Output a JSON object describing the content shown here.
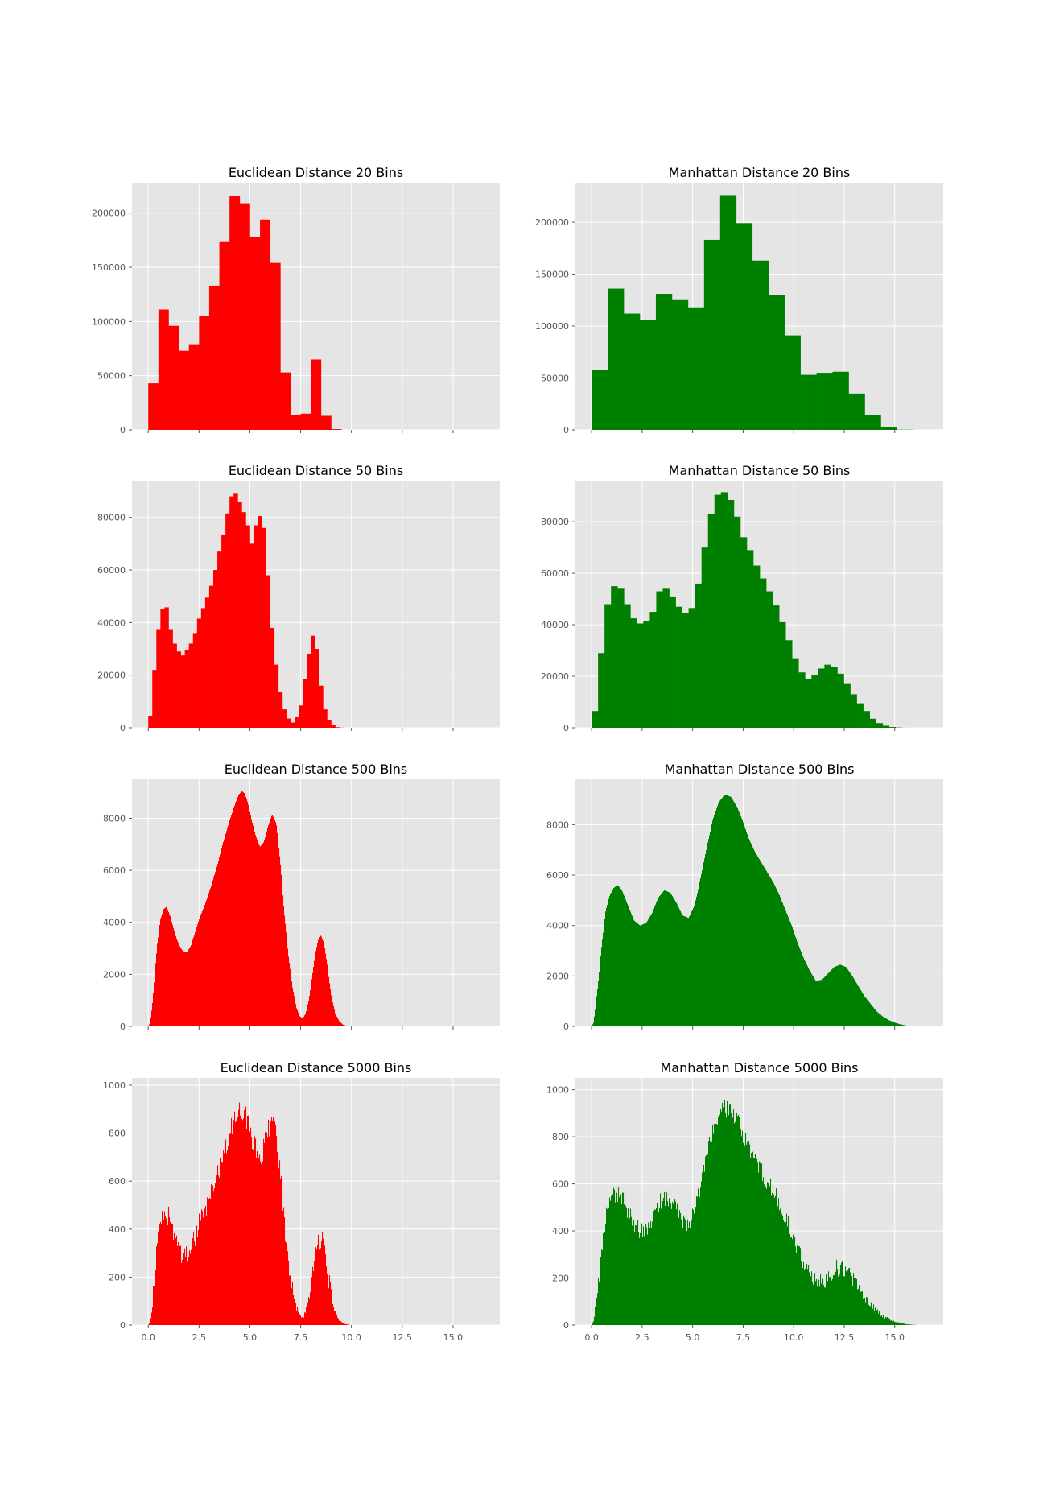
{
  "chart_data": [
    {
      "type": "bar",
      "title": "Euclidean Distance 20 Bins",
      "color": "#ff0000",
      "xlim": [
        -0.8,
        17.3
      ],
      "ylim": [
        0,
        228000
      ],
      "yticks": [
        0,
        50000,
        100000,
        150000,
        200000
      ],
      "xticks": [
        0,
        2.5,
        5.0,
        7.5,
        10.0,
        12.5,
        15.0
      ],
      "xtick_labels": [],
      "bin_start": 0.0,
      "bin_width": 0.5,
      "values": [
        43000,
        111000,
        96000,
        73000,
        79000,
        105000,
        133000,
        174000,
        216000,
        209000,
        178000,
        194000,
        154000,
        53000,
        14000,
        15000,
        65000,
        13000,
        700,
        0
      ]
    },
    {
      "type": "bar",
      "title": "Manhattan Distance 20 Bins",
      "color": "#008000",
      "xlim": [
        -0.8,
        17.4
      ],
      "ylim": [
        0,
        238000
      ],
      "yticks": [
        0,
        50000,
        100000,
        150000,
        200000
      ],
      "xticks": [
        0,
        2.5,
        5.0,
        7.5,
        10.0,
        12.5,
        15.0
      ],
      "xtick_labels": [],
      "bin_start": 0.0,
      "bin_width": 0.795,
      "values": [
        58000,
        136000,
        112000,
        106000,
        131000,
        125000,
        118000,
        183000,
        226000,
        199000,
        163000,
        130000,
        91000,
        53000,
        55000,
        56000,
        35000,
        14000,
        3000,
        200
      ]
    },
    {
      "type": "bar",
      "title": "Euclidean Distance 50 Bins",
      "color": "#ff0000",
      "xlim": [
        -0.8,
        17.3
      ],
      "ylim": [
        0,
        94000
      ],
      "yticks": [
        0,
        20000,
        40000,
        60000,
        80000
      ],
      "xticks": [
        0,
        2.5,
        5.0,
        7.5,
        10.0,
        12.5,
        15.0
      ],
      "xtick_labels": [],
      "bin_start": 0.0,
      "bin_width": 0.2,
      "values": [
        4500,
        22000,
        37500,
        45000,
        45800,
        37500,
        32000,
        29000,
        27500,
        29500,
        32000,
        36000,
        41500,
        45500,
        49500,
        54000,
        60000,
        67000,
        73500,
        81500,
        88000,
        89000,
        86000,
        82000,
        77000,
        70000,
        77000,
        80500,
        76000,
        58000,
        38000,
        24000,
        13500,
        7000,
        3500,
        2000,
        4000,
        8500,
        18500,
        28000,
        35000,
        30000,
        16000,
        7000,
        3000,
        1000,
        200,
        50,
        0,
        0
      ]
    },
    {
      "type": "bar",
      "title": "Manhattan Distance 50 Bins",
      "color": "#008000",
      "xlim": [
        -0.8,
        17.4
      ],
      "ylim": [
        0,
        96000
      ],
      "yticks": [
        0,
        20000,
        40000,
        60000,
        80000
      ],
      "xticks": [
        0,
        2.5,
        5.0,
        7.5,
        10.0,
        12.5,
        15.0
      ],
      "xtick_labels": [],
      "bin_start": 0.0,
      "bin_width": 0.32,
      "values": [
        6500,
        29000,
        48000,
        55000,
        54000,
        48000,
        42500,
        40500,
        41500,
        45000,
        53000,
        54000,
        51000,
        47000,
        44500,
        46500,
        56000,
        70000,
        83000,
        90500,
        91500,
        88500,
        82000,
        74000,
        69000,
        63000,
        58000,
        53000,
        47500,
        41000,
        34000,
        27000,
        21500,
        19000,
        20500,
        23000,
        24500,
        23500,
        21000,
        17000,
        13000,
        9500,
        6500,
        3500,
        1800,
        800,
        300,
        100,
        20,
        0
      ]
    },
    {
      "type": "bar",
      "title": "Euclidean Distance 500 Bins",
      "color": "#ff0000",
      "xlim": [
        -0.8,
        17.3
      ],
      "ylim": [
        0,
        9500
      ],
      "yticks": [
        0,
        2000,
        4000,
        6000,
        8000
      ],
      "xticks": [
        0,
        2.5,
        5.0,
        7.5,
        10.0,
        12.5,
        15.0
      ],
      "xtick_labels": [],
      "bin_start": 0.0,
      "bin_width": 0.02,
      "profile_x": [
        0.0,
        0.1,
        0.2,
        0.3,
        0.45,
        0.6,
        0.75,
        0.9,
        1.1,
        1.3,
        1.5,
        1.7,
        1.9,
        2.1,
        2.3,
        2.5,
        2.8,
        3.1,
        3.4,
        3.7,
        4.0,
        4.3,
        4.45,
        4.6,
        4.75,
        4.9,
        5.1,
        5.3,
        5.5,
        5.7,
        5.9,
        6.1,
        6.3,
        6.5,
        6.7,
        6.9,
        7.1,
        7.3,
        7.45,
        7.6,
        7.75,
        7.9,
        8.05,
        8.2,
        8.35,
        8.5,
        8.65,
        8.8,
        9.0,
        9.2,
        9.4,
        9.6,
        9.8,
        10.0,
        17.0
      ],
      "profile_y": [
        0,
        150,
        800,
        1800,
        3200,
        4100,
        4500,
        4600,
        4200,
        3600,
        3150,
        2900,
        2850,
        3100,
        3600,
        4100,
        4700,
        5400,
        6200,
        7100,
        7900,
        8600,
        8900,
        9050,
        8950,
        8600,
        7900,
        7300,
        6900,
        7100,
        7700,
        8150,
        7800,
        6300,
        4300,
        2700,
        1500,
        700,
        400,
        300,
        500,
        1000,
        1800,
        2700,
        3300,
        3500,
        3200,
        2400,
        1200,
        500,
        200,
        60,
        20,
        0,
        0
      ]
    },
    {
      "type": "bar",
      "title": "Manhattan Distance 500 Bins",
      "color": "#008000",
      "xlim": [
        -0.8,
        17.4
      ],
      "ylim": [
        0,
        9800
      ],
      "yticks": [
        0,
        2000,
        4000,
        6000,
        8000
      ],
      "xticks": [
        0,
        2.5,
        5.0,
        7.5,
        10.0,
        12.5,
        15.0
      ],
      "xtick_labels": [],
      "bin_start": 0.0,
      "bin_width": 0.032,
      "profile_x": [
        0.0,
        0.1,
        0.3,
        0.5,
        0.7,
        0.9,
        1.1,
        1.3,
        1.5,
        1.8,
        2.1,
        2.4,
        2.7,
        3.0,
        3.3,
        3.6,
        3.9,
        4.2,
        4.5,
        4.8,
        5.1,
        5.4,
        5.7,
        6.0,
        6.3,
        6.6,
        6.9,
        7.2,
        7.5,
        7.8,
        8.1,
        8.4,
        8.7,
        9.0,
        9.3,
        9.6,
        9.9,
        10.2,
        10.5,
        10.8,
        11.1,
        11.4,
        11.7,
        12.0,
        12.3,
        12.6,
        12.9,
        13.2,
        13.5,
        13.8,
        14.1,
        14.4,
        14.7,
        15.0,
        15.3,
        15.6,
        15.9,
        16.2,
        17.0
      ],
      "profile_y": [
        0,
        150,
        1500,
        3200,
        4600,
        5200,
        5500,
        5600,
        5400,
        4800,
        4200,
        4000,
        4100,
        4500,
        5100,
        5400,
        5300,
        4900,
        4400,
        4300,
        4800,
        5900,
        7100,
        8200,
        8900,
        9200,
        9100,
        8700,
        8100,
        7400,
        6900,
        6500,
        6100,
        5700,
        5200,
        4600,
        4000,
        3300,
        2700,
        2200,
        1800,
        1850,
        2100,
        2350,
        2450,
        2350,
        2000,
        1600,
        1200,
        900,
        600,
        400,
        250,
        150,
        80,
        30,
        10,
        0,
        0
      ]
    },
    {
      "type": "bar",
      "title": "Euclidean Distance 5000 Bins",
      "color": "#ff0000",
      "xlim": [
        -0.8,
        17.3
      ],
      "ylim": [
        0,
        1030
      ],
      "yticks": [
        0,
        200,
        400,
        600,
        800,
        1000
      ],
      "xticks": [
        0,
        2.5,
        5.0,
        7.5,
        10.0,
        12.5,
        15.0
      ],
      "xtick_labels": [
        "0.0",
        "2.5",
        "5.0",
        "7.5",
        "10.0",
        "12.5",
        "15.0"
      ],
      "bin_start": 0.0,
      "bin_width": 0.002,
      "profile_x": [
        0.0,
        0.1,
        0.2,
        0.3,
        0.45,
        0.6,
        0.75,
        0.9,
        1.1,
        1.3,
        1.5,
        1.7,
        1.9,
        2.1,
        2.3,
        2.5,
        2.8,
        3.1,
        3.4,
        3.7,
        4.0,
        4.3,
        4.45,
        4.6,
        4.75,
        4.9,
        5.1,
        5.3,
        5.5,
        5.7,
        5.9,
        6.1,
        6.3,
        6.5,
        6.7,
        6.9,
        7.1,
        7.3,
        7.45,
        7.6,
        7.75,
        7.9,
        8.05,
        8.2,
        8.35,
        8.5,
        8.65,
        8.8,
        9.0,
        9.2,
        9.4,
        9.6,
        9.8,
        10.0,
        17.0
      ],
      "profile_y": [
        0,
        15,
        80,
        190,
        340,
        430,
        465,
        470,
        430,
        370,
        320,
        295,
        290,
        315,
        365,
        420,
        480,
        550,
        630,
        720,
        800,
        870,
        895,
        905,
        880,
        840,
        780,
        730,
        700,
        740,
        820,
        860,
        790,
        630,
        430,
        270,
        150,
        70,
        40,
        30,
        55,
        105,
        185,
        280,
        345,
        360,
        330,
        245,
        125,
        50,
        20,
        6,
        2,
        0,
        0
      ],
      "noise": 45
    },
    {
      "type": "bar",
      "title": "Manhattan Distance 5000 Bins",
      "color": "#008000",
      "xlim": [
        -0.8,
        17.4
      ],
      "ylim": [
        0,
        1050
      ],
      "yticks": [
        0,
        200,
        400,
        600,
        800,
        1000
      ],
      "xticks": [
        0,
        2.5,
        5.0,
        7.5,
        10.0,
        12.5,
        15.0
      ],
      "xtick_labels": [
        "0.0",
        "2.5",
        "5.0",
        "7.5",
        "10.0",
        "12.5",
        "15.0"
      ],
      "bin_start": 0.0,
      "bin_width": 0.0032,
      "profile_x": [
        0.0,
        0.1,
        0.3,
        0.5,
        0.7,
        0.9,
        1.1,
        1.3,
        1.5,
        1.8,
        2.1,
        2.4,
        2.7,
        3.0,
        3.3,
        3.6,
        3.9,
        4.2,
        4.5,
        4.8,
        5.1,
        5.4,
        5.7,
        6.0,
        6.3,
        6.6,
        6.9,
        7.2,
        7.5,
        7.8,
        8.1,
        8.4,
        8.7,
        9.0,
        9.3,
        9.6,
        9.9,
        10.2,
        10.5,
        10.8,
        11.1,
        11.4,
        11.7,
        12.0,
        12.3,
        12.6,
        12.9,
        13.2,
        13.5,
        13.8,
        14.1,
        14.4,
        14.7,
        15.0,
        15.3,
        15.6,
        15.9,
        16.2,
        17.0
      ],
      "profile_y": [
        0,
        15,
        150,
        320,
        460,
        520,
        550,
        560,
        540,
        480,
        420,
        400,
        410,
        450,
        510,
        540,
        530,
        490,
        440,
        430,
        480,
        590,
        710,
        820,
        890,
        920,
        910,
        870,
        810,
        740,
        690,
        650,
        610,
        570,
        520,
        460,
        400,
        330,
        270,
        220,
        180,
        185,
        210,
        235,
        245,
        235,
        200,
        160,
        120,
        90,
        60,
        40,
        25,
        15,
        8,
        3,
        1,
        0,
        0
      ],
      "noise": 40
    }
  ]
}
